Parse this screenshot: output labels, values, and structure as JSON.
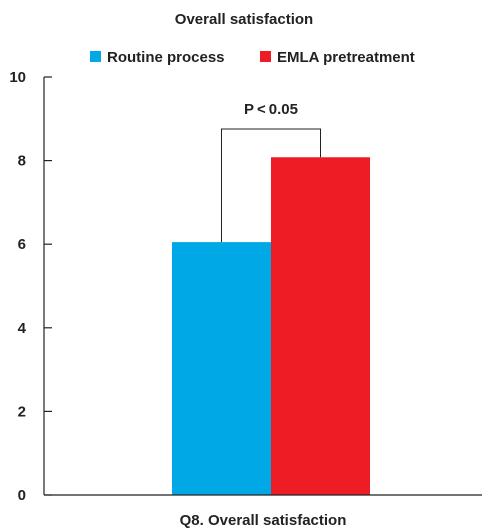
{
  "chart_data": {
    "type": "bar",
    "title": "Overall satisfaction",
    "xlabel": "Q8. Overall satisfaction",
    "ylabel": "",
    "categories": [
      "Q8. Overall satisfaction"
    ],
    "series": [
      {
        "name": "Routine process",
        "values": [
          6.05
        ],
        "color": "#00a9e6"
      },
      {
        "name": "EMLA pretreatment",
        "values": [
          8.08
        ],
        "color": "#ee1c25"
      }
    ],
    "ylim": [
      0,
      10
    ],
    "yticks": [
      "0",
      "2",
      "4",
      "6",
      "8",
      "10"
    ],
    "annotation": {
      "text": "P < 0.05"
    },
    "legend_position": "top",
    "grid": false
  }
}
